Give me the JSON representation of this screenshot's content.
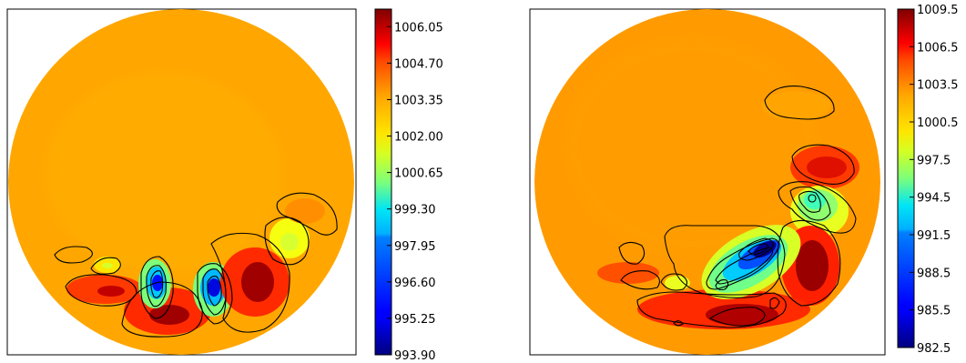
{
  "chart_data": [
    {
      "type": "heatmap",
      "subtype": "filled contour plot on circular domain with line contours",
      "colormap": "jet",
      "colorbar": {
        "min": 993.9,
        "max": 1006.7,
        "tick_labels": [
          "1006.05",
          "1004.70",
          "1003.35",
          "1002.00",
          "1000.65",
          "999.30",
          "997.95",
          "996.60",
          "995.25",
          "993.90"
        ],
        "tick_values": [
          1006.05,
          1004.7,
          1003.35,
          1002.0,
          1000.65,
          999.3,
          997.95,
          996.6,
          995.25,
          993.9
        ]
      },
      "background_level": 1003.0
    },
    {
      "type": "heatmap",
      "subtype": "filled contour plot on circular domain with line contours",
      "colormap": "jet",
      "colorbar": {
        "min": 982.5,
        "max": 1009.5,
        "tick_labels": [
          "1009.5",
          "1006.5",
          "1003.5",
          "1000.5",
          "997.5",
          "994.5",
          "991.5",
          "988.5",
          "985.5",
          "982.5"
        ],
        "tick_values": [
          1009.5,
          1006.5,
          1003.5,
          1000.5,
          997.5,
          994.5,
          991.5,
          988.5,
          985.5,
          982.5
        ]
      },
      "background_level": 1003.5
    }
  ]
}
